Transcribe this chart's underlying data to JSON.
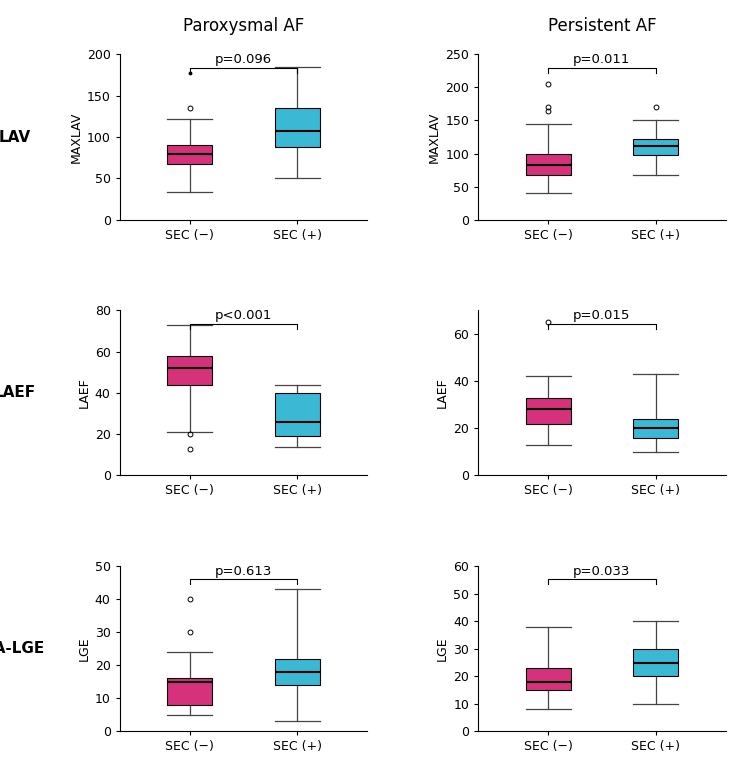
{
  "title_left": "Paroxysmal AF",
  "title_right": "Persistent AF",
  "color_neg": "#D6317B",
  "color_pos": "#3BB8D4",
  "row_labels": [
    "LAV",
    "LAEF",
    "LA-LGE"
  ],
  "ylabel_left": [
    "MAXLAV",
    "LAEF",
    "LGE"
  ],
  "ylabel_right": [
    "MAXLAV",
    "LAEF",
    "LGE"
  ],
  "pvalues": [
    [
      "p=0.096",
      "p=0.011"
    ],
    [
      "p<0.001",
      "p=0.015"
    ],
    [
      "p=0.613",
      "p=0.033"
    ]
  ],
  "ylims": [
    [
      [
        0,
        200
      ],
      [
        0,
        250
      ]
    ],
    [
      [
        0,
        80
      ],
      [
        0,
        70
      ]
    ],
    [
      [
        0,
        50
      ],
      [
        0,
        60
      ]
    ]
  ],
  "yticks": [
    [
      [
        0,
        50,
        100,
        150,
        200
      ],
      [
        0,
        50,
        100,
        150,
        200,
        250
      ]
    ],
    [
      [
        0,
        20,
        40,
        60,
        80
      ],
      [
        0,
        20,
        40,
        60
      ]
    ],
    [
      [
        0,
        10,
        20,
        30,
        40,
        50
      ],
      [
        0,
        10,
        20,
        30,
        40,
        50,
        60
      ]
    ]
  ],
  "boxes": {
    "parox_lav_neg": {
      "q1": 67,
      "median": 80,
      "q3": 90,
      "whislo": 33,
      "whishi": 122,
      "fliers_dot": [
        178
      ],
      "fliers_circ": [
        135
      ]
    },
    "parox_lav_pos": {
      "q1": 88,
      "median": 107,
      "q3": 135,
      "whislo": 50,
      "whishi": 185,
      "fliers_dot": [],
      "fliers_circ": []
    },
    "parox_laef_neg": {
      "q1": 44,
      "median": 52,
      "q3": 58,
      "whislo": 21,
      "whishi": 73,
      "fliers_dot": [],
      "fliers_circ": [
        20,
        13
      ]
    },
    "parox_laef_pos": {
      "q1": 19,
      "median": 26,
      "q3": 40,
      "whislo": 14,
      "whishi": 44,
      "fliers_dot": [],
      "fliers_circ": []
    },
    "parox_lge_neg": {
      "q1": 8,
      "median": 15,
      "q3": 16,
      "whislo": 5,
      "whishi": 24,
      "fliers_dot": [],
      "fliers_circ": [
        40,
        30
      ]
    },
    "parox_lge_pos": {
      "q1": 14,
      "median": 18,
      "q3": 22,
      "whislo": 3,
      "whishi": 43,
      "fliers_dot": [],
      "fliers_circ": []
    },
    "pers_lav_neg": {
      "q1": 68,
      "median": 83,
      "q3": 100,
      "whislo": 40,
      "whishi": 145,
      "fliers_dot": [],
      "fliers_circ": [
        165,
        170,
        205
      ]
    },
    "pers_lav_pos": {
      "q1": 98,
      "median": 112,
      "q3": 122,
      "whislo": 68,
      "whishi": 150,
      "fliers_dot": [],
      "fliers_circ": [
        170
      ]
    },
    "pers_laef_neg": {
      "q1": 22,
      "median": 28,
      "q3": 33,
      "whislo": 13,
      "whishi": 42,
      "fliers_dot": [],
      "fliers_circ": [
        65
      ]
    },
    "pers_laef_pos": {
      "q1": 16,
      "median": 20,
      "q3": 24,
      "whislo": 10,
      "whishi": 43,
      "fliers_dot": [],
      "fliers_circ": []
    },
    "pers_lge_neg": {
      "q1": 15,
      "median": 18,
      "q3": 23,
      "whislo": 8,
      "whishi": 38,
      "fliers_dot": [],
      "fliers_circ": []
    },
    "pers_lge_pos": {
      "q1": 20,
      "median": 25,
      "q3": 30,
      "whislo": 10,
      "whishi": 40,
      "fliers_dot": [],
      "fliers_circ": []
    }
  },
  "box_width": 0.42,
  "title_fontsize": 12,
  "label_fontsize": 9,
  "tick_fontsize": 9,
  "pvalue_fontsize": 9.5,
  "row_label_fontsize": 11,
  "ylabel_fontsize": 9
}
